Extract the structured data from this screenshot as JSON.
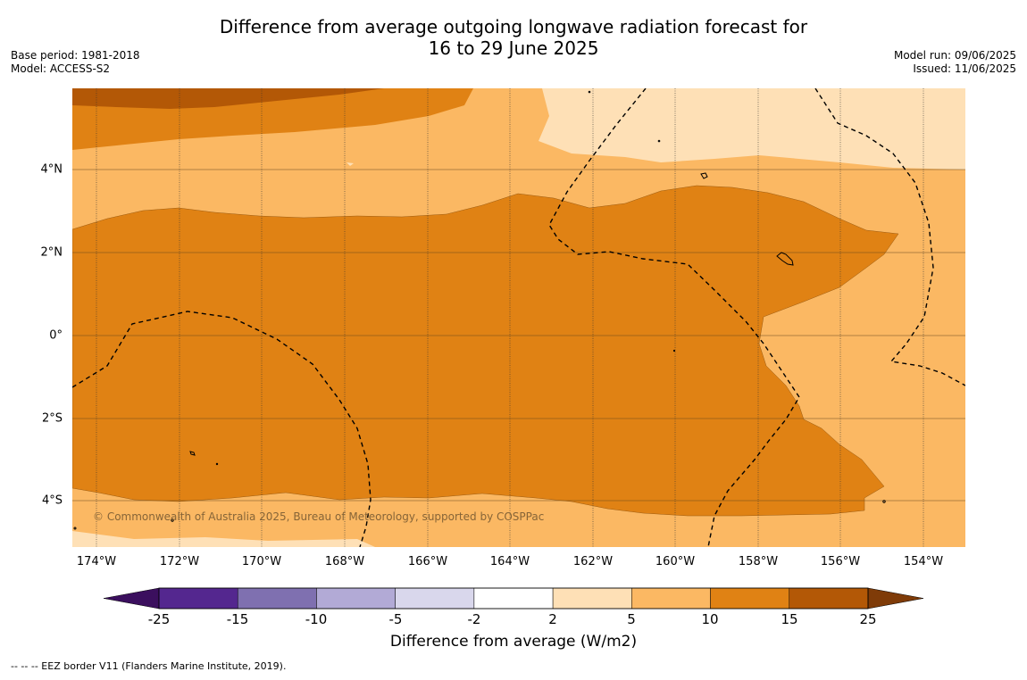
{
  "title_line1": "Difference from average outgoing longwave radiation forecast for",
  "title_line2": "16 to 29 June 2025",
  "base_period": "Base period: 1981-2018",
  "model": "Model: ACCESS-S2",
  "model_run": "Model run: 09/06/2025",
  "issued": "Issued: 11/06/2025",
  "copyright": "© Commonwealth of Australia 2025, Bureau of Meteorology, supported by COSPPac",
  "lat_labels": [
    "4°N",
    "2°N",
    "0°",
    "2°S",
    "4°S"
  ],
  "lon_labels": [
    "174°W",
    "172°W",
    "170°W",
    "168°W",
    "166°W",
    "164°W",
    "162°W",
    "160°W",
    "158°W",
    "156°W",
    "154°W"
  ],
  "colorbar": {
    "title": "Difference from average (W/m2)",
    "tick_labels": [
      "-25",
      "-15",
      "-10",
      "-5",
      "-2",
      "2",
      "5",
      "10",
      "15",
      "25"
    ],
    "colors": [
      "#3b0f5e",
      "#54278f",
      "#7f70b0",
      "#b2aad6",
      "#d9d7ec",
      "#ffffff",
      "#fee0b6",
      "#fbb863",
      "#e08214",
      "#b35806",
      "#7f3b08"
    ]
  },
  "footer": "--  --  -- EEZ border V11 (Flanders Marine Institute, 2019)."
}
